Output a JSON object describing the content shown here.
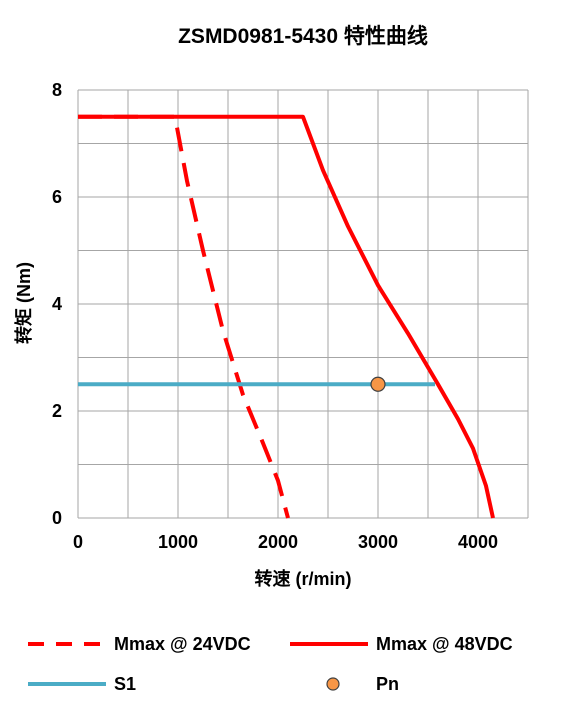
{
  "chart_data": {
    "type": "line",
    "title": "ZSMD0981-5430 特性曲线",
    "xlabel": "转速 (r/min)",
    "ylabel": "转矩 (Nm)",
    "xlim": [
      0,
      4500
    ],
    "ylim": [
      0,
      8
    ],
    "x_ticks": [
      0,
      1000,
      2000,
      3000,
      4000
    ],
    "y_ticks": [
      0,
      2,
      4,
      6,
      8
    ],
    "grid": true,
    "legend_position": "bottom",
    "series": [
      {
        "name": "Mmax @ 24VDC",
        "color": "#ff0000",
        "style": "dashed",
        "points": [
          [
            0,
            7.5
          ],
          [
            970,
            7.5
          ],
          [
            1090,
            6.3
          ],
          [
            1250,
            5.0
          ],
          [
            1450,
            3.5
          ],
          [
            1650,
            2.3
          ],
          [
            1850,
            1.4
          ],
          [
            2000,
            0.7
          ],
          [
            2100,
            0
          ]
        ]
      },
      {
        "name": "Mmax @ 48VDC",
        "color": "#ff0000",
        "style": "solid",
        "points": [
          [
            0,
            7.5
          ],
          [
            2250,
            7.5
          ],
          [
            2450,
            6.5
          ],
          [
            2700,
            5.45
          ],
          [
            3000,
            4.35
          ],
          [
            3300,
            3.45
          ],
          [
            3600,
            2.5
          ],
          [
            3800,
            1.85
          ],
          [
            3950,
            1.3
          ],
          [
            4080,
            0.6
          ],
          [
            4150,
            0
          ]
        ]
      },
      {
        "name": "S1",
        "color": "#4bacc6",
        "style": "solid",
        "points": [
          [
            0,
            2.5
          ],
          [
            3570,
            2.5
          ]
        ]
      },
      {
        "name": "Pn",
        "color": "#f79646",
        "style": "marker",
        "points": [
          [
            3000,
            2.5
          ]
        ]
      }
    ]
  }
}
